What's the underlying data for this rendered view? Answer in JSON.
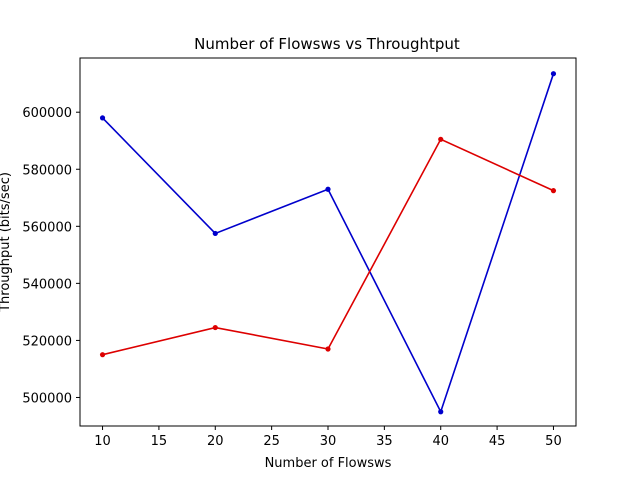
{
  "chart_data": {
    "type": "line",
    "title": "Number of Flowsws vs Throughtput",
    "xlabel": "Number of Flowsws",
    "ylabel": "Throughput (bits/sec)",
    "x": [
      10,
      20,
      30,
      40,
      50
    ],
    "xlim": [
      8,
      52
    ],
    "ylim": [
      490000,
      619000
    ],
    "xticks": [
      10,
      15,
      20,
      25,
      30,
      35,
      40,
      45,
      50
    ],
    "yticks": [
      500000,
      520000,
      540000,
      560000,
      580000,
      600000
    ],
    "grid": false,
    "series": [
      {
        "color": "#0000cc",
        "values": [
          598000,
          557500,
          573000,
          495000,
          613500
        ]
      },
      {
        "color": "#dd0000",
        "values": [
          515000,
          524500,
          517000,
          590500,
          572500
        ]
      }
    ]
  }
}
